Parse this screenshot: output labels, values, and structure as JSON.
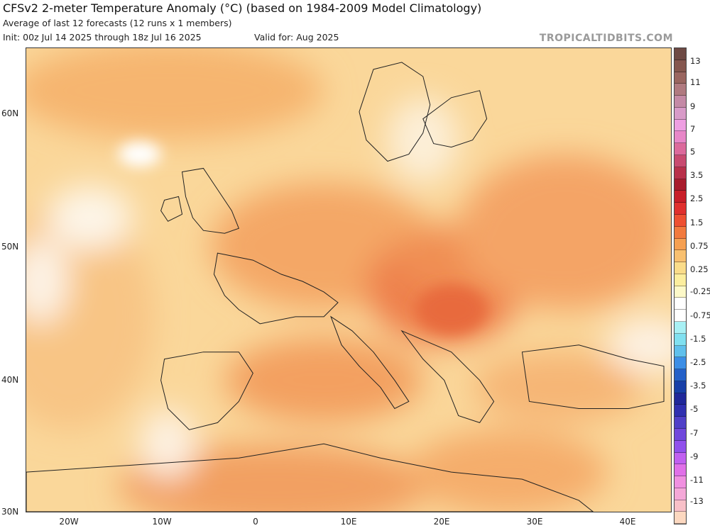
{
  "header": {
    "title": "CFSv2 2-meter Temperature Anomaly (°C) (based on 1984-2009 Model Climatology)",
    "subtitle": "Average of last 12 forecasts (12 runs x 1 members)",
    "init": "Init: 00z Jul 14 2025 through 18z Jul 16 2025",
    "valid": "Valid for: Aug 2025",
    "brand": "TROPICALTIDBITS.COM"
  },
  "map": {
    "region": "Europe",
    "lat_labels": [
      "60N",
      "50N",
      "40N",
      "30N"
    ],
    "lon_labels": [
      "20W",
      "10W",
      "0",
      "10E",
      "20E",
      "30E",
      "40E"
    ]
  },
  "colorbar": {
    "labels": [
      "13",
      "11",
      "9",
      "7",
      "5",
      "3.5",
      "2.5",
      "1.5",
      "0.75",
      "0.25",
      "-0.25",
      "-0.75",
      "-1.5",
      "-2.5",
      "-3.5",
      "-5",
      "-7",
      "-9",
      "-11",
      "-13"
    ],
    "colors": [
      "#6e4a44",
      "#85574f",
      "#9a6660",
      "#b07a80",
      "#c48aa6",
      "#d89bc8",
      "#ee9fe2",
      "#e887c8",
      "#dc6a9c",
      "#c84a70",
      "#b8304a",
      "#a81c2c",
      "#c81e28",
      "#e0302e",
      "#ee5032",
      "#f27a3e",
      "#f6a052",
      "#f8c070",
      "#fadc8a",
      "#fcee9e",
      "#fdf9c8",
      "#ffffff",
      "#ffffff",
      "#a8f0f4",
      "#80e0f0",
      "#60c0ec",
      "#3c8ee6",
      "#2460c8",
      "#1840a8",
      "#20289a",
      "#3030b0",
      "#5040c8",
      "#7048dc",
      "#9050ec",
      "#c060f0",
      "#e070e8",
      "#f090e0",
      "#f4a8d8",
      "#f8c0c8",
      "#fcd8c0"
    ]
  }
}
